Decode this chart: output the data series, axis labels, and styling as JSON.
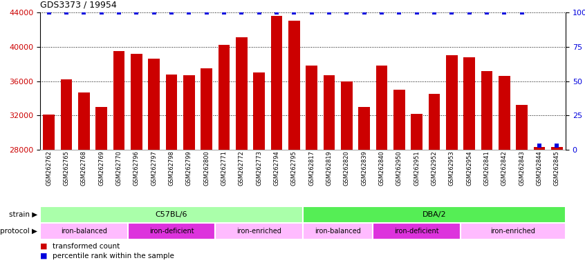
{
  "title": "GDS3373 / 19954",
  "samples": [
    "GSM262762",
    "GSM262765",
    "GSM262768",
    "GSM262769",
    "GSM262770",
    "GSM262796",
    "GSM262797",
    "GSM262798",
    "GSM262799",
    "GSM262800",
    "GSM262771",
    "GSM262772",
    "GSM262773",
    "GSM262794",
    "GSM262795",
    "GSM262817",
    "GSM262819",
    "GSM262820",
    "GSM262839",
    "GSM262840",
    "GSM262950",
    "GSM262951",
    "GSM262952",
    "GSM262953",
    "GSM262954",
    "GSM262841",
    "GSM262842",
    "GSM262843",
    "GSM262844",
    "GSM262845"
  ],
  "bar_values": [
    32100,
    36200,
    34700,
    33000,
    39500,
    39200,
    38600,
    36800,
    36700,
    37500,
    40200,
    41100,
    37000,
    43600,
    43000,
    37800,
    36700,
    36000,
    33000,
    37800,
    35000,
    32200,
    34500,
    39000,
    38800,
    37200,
    36600,
    33200,
    28300,
    28300
  ],
  "percentile_values": [
    100,
    100,
    100,
    100,
    100,
    100,
    100,
    100,
    100,
    100,
    100,
    100,
    100,
    100,
    100,
    100,
    100,
    100,
    100,
    100,
    100,
    100,
    100,
    100,
    100,
    100,
    100,
    100,
    3,
    3
  ],
  "bar_color": "#cc0000",
  "percentile_color": "#0000dd",
  "ymin": 28000,
  "ymax": 44000,
  "yticks": [
    28000,
    32000,
    36000,
    40000,
    44000
  ],
  "y2min": 0,
  "y2max": 100,
  "y2ticks": [
    0,
    25,
    50,
    75,
    100
  ],
  "y2ticklabels": [
    "0",
    "25",
    "50",
    "75",
    "100%"
  ],
  "strain_groups": [
    {
      "text": "C57BL/6",
      "start": 0,
      "end": 15,
      "color": "#99ee99"
    },
    {
      "text": "DBA/2",
      "start": 15,
      "end": 30,
      "color": "#44cc44"
    }
  ],
  "protocol_groups": [
    {
      "text": "iron-balanced",
      "start": 0,
      "end": 5,
      "color": "#ffaaff"
    },
    {
      "text": "iron-deficient",
      "start": 5,
      "end": 10,
      "color": "#dd44dd"
    },
    {
      "text": "iron-enriched",
      "start": 10,
      "end": 15,
      "color": "#ffaaff"
    },
    {
      "text": "iron-balanced",
      "start": 15,
      "end": 19,
      "color": "#ffaaff"
    },
    {
      "text": "iron-deficient",
      "start": 19,
      "end": 24,
      "color": "#dd44dd"
    },
    {
      "text": "iron-enriched",
      "start": 24,
      "end": 30,
      "color": "#ffaaff"
    }
  ]
}
